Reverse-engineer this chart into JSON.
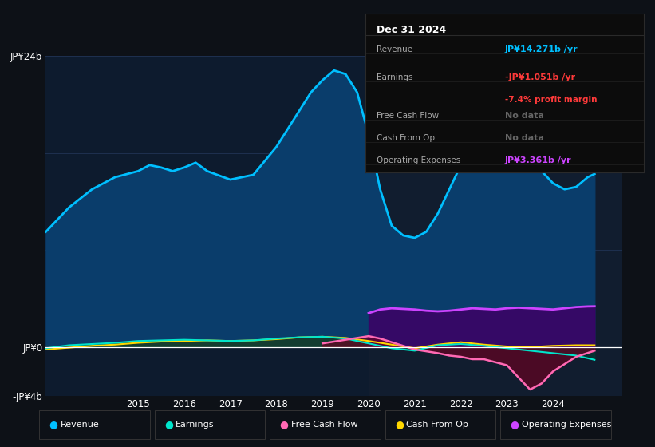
{
  "bg_color": "#0d1117",
  "plot_bg_color": "#0d1b2e",
  "grid_color": "#1e3050",
  "ylim": [
    -4000000000.0,
    24000000000.0
  ],
  "ytick_vals": [
    -4000000000.0,
    0,
    8000000000.0,
    16000000000.0,
    24000000000.0
  ],
  "ytick_labels": [
    "-JP¥4b",
    "JP¥0",
    "",
    "",
    "JP¥24b"
  ],
  "xlim": [
    2013.0,
    2025.5
  ],
  "xticks": [
    2015,
    2016,
    2017,
    2018,
    2019,
    2020,
    2021,
    2022,
    2023,
    2024
  ],
  "legend": [
    {
      "label": "Revenue",
      "color": "#00bfff"
    },
    {
      "label": "Earnings",
      "color": "#00e5cc"
    },
    {
      "label": "Free Cash Flow",
      "color": "#ff69b4"
    },
    {
      "label": "Cash From Op",
      "color": "#ffd700"
    },
    {
      "label": "Operating Expenses",
      "color": "#cc44ff"
    }
  ],
  "revenue": {
    "x": [
      2013.0,
      2013.5,
      2014.0,
      2014.5,
      2015.0,
      2015.25,
      2015.5,
      2015.75,
      2016.0,
      2016.25,
      2016.5,
      2017.0,
      2017.5,
      2018.0,
      2018.5,
      2018.75,
      2019.0,
      2019.25,
      2019.5,
      2019.75,
      2020.0,
      2020.25,
      2020.5,
      2020.75,
      2021.0,
      2021.25,
      2021.5,
      2021.75,
      2022.0,
      2022.25,
      2022.5,
      2022.75,
      2023.0,
      2023.25,
      2023.5,
      2023.75,
      2024.0,
      2024.25,
      2024.5,
      2024.75,
      2024.9
    ],
    "y": [
      9500000000.0,
      11500000000.0,
      13000000000.0,
      14000000000.0,
      14500000000.0,
      15000000000.0,
      14800000000.0,
      14500000000.0,
      14800000000.0,
      15200000000.0,
      14500000000.0,
      13800000000.0,
      14200000000.0,
      16500000000.0,
      19500000000.0,
      21000000000.0,
      22000000000.0,
      22800000000.0,
      22500000000.0,
      21000000000.0,
      17500000000.0,
      13000000000.0,
      10000000000.0,
      9200000000.0,
      9000000000.0,
      9500000000.0,
      11000000000.0,
      13000000000.0,
      15000000000.0,
      16000000000.0,
      15500000000.0,
      15800000000.0,
      16000000000.0,
      15800000000.0,
      15500000000.0,
      14500000000.0,
      13500000000.0,
      13000000000.0,
      13200000000.0,
      14000000000.0,
      14271000000.0
    ],
    "color": "#00bfff",
    "fill_color": "#0a3d6b",
    "linewidth": 2.0
  },
  "earnings": {
    "x": [
      2013.0,
      2013.5,
      2014.0,
      2014.5,
      2015.0,
      2015.5,
      2016.0,
      2016.5,
      2017.0,
      2017.5,
      2018.0,
      2018.5,
      2019.0,
      2019.5,
      2019.75,
      2020.0,
      2020.25,
      2020.5,
      2021.0,
      2021.5,
      2022.0,
      2022.5,
      2023.0,
      2023.5,
      2024.0,
      2024.5,
      2024.9
    ],
    "y": [
      -100000000.0,
      150000000.0,
      250000000.0,
      350000000.0,
      500000000.0,
      550000000.0,
      600000000.0,
      550000000.0,
      500000000.0,
      550000000.0,
      700000000.0,
      800000000.0,
      850000000.0,
      700000000.0,
      500000000.0,
      300000000.0,
      100000000.0,
      -100000000.0,
      -300000000.0,
      150000000.0,
      250000000.0,
      100000000.0,
      -100000000.0,
      -300000000.0,
      -500000000.0,
      -700000000.0,
      -1051000000.0
    ],
    "color": "#00e5cc",
    "fill_color": "#003d35",
    "linewidth": 1.5
  },
  "free_cash_flow": {
    "x": [
      2019.0,
      2019.5,
      2020.0,
      2020.25,
      2020.5,
      2020.75,
      2021.0,
      2021.5,
      2021.75,
      2022.0,
      2022.25,
      2022.5,
      2023.0,
      2023.25,
      2023.5,
      2023.75,
      2024.0,
      2024.5,
      2024.9
    ],
    "y": [
      300000000.0,
      600000000.0,
      900000000.0,
      700000000.0,
      400000000.0,
      100000000.0,
      -200000000.0,
      -500000000.0,
      -700000000.0,
      -800000000.0,
      -1000000000.0,
      -1000000000.0,
      -1500000000.0,
      -2500000000.0,
      -3500000000.0,
      -3000000000.0,
      -2000000000.0,
      -800000000.0,
      -300000000.0
    ],
    "color": "#ff69b4",
    "fill_color": "#6b0020",
    "linewidth": 1.8
  },
  "cash_from_op": {
    "x": [
      2013.0,
      2013.5,
      2014.0,
      2014.5,
      2015.0,
      2015.5,
      2016.0,
      2016.5,
      2017.0,
      2017.5,
      2018.0,
      2018.5,
      2019.0,
      2019.5,
      2020.0,
      2020.5,
      2021.0,
      2021.5,
      2022.0,
      2022.5,
      2023.0,
      2023.5,
      2024.0,
      2024.5,
      2024.9
    ],
    "y": [
      -200000000.0,
      -50000000.0,
      100000000.0,
      200000000.0,
      350000000.0,
      450000000.0,
      500000000.0,
      550000000.0,
      500000000.0,
      550000000.0,
      650000000.0,
      800000000.0,
      850000000.0,
      750000000.0,
      500000000.0,
      200000000.0,
      -100000000.0,
      200000000.0,
      400000000.0,
      200000000.0,
      50000000.0,
      0.0,
      100000000.0,
      150000000.0,
      150000000.0
    ],
    "color": "#ffd700",
    "fill_color": "#4d3d00",
    "linewidth": 1.5
  },
  "operating_expenses": {
    "x": [
      2020.0,
      2020.25,
      2020.5,
      2020.75,
      2021.0,
      2021.25,
      2021.5,
      2021.75,
      2022.0,
      2022.25,
      2022.5,
      2022.75,
      2023.0,
      2023.25,
      2023.5,
      2023.75,
      2024.0,
      2024.25,
      2024.5,
      2024.75,
      2024.9
    ],
    "y": [
      2800000000.0,
      3100000000.0,
      3200000000.0,
      3150000000.0,
      3100000000.0,
      3000000000.0,
      2950000000.0,
      3000000000.0,
      3100000000.0,
      3200000000.0,
      3150000000.0,
      3100000000.0,
      3200000000.0,
      3250000000.0,
      3200000000.0,
      3150000000.0,
      3100000000.0,
      3200000000.0,
      3300000000.0,
      3350000000.0,
      3361000000.0
    ],
    "color": "#cc44ff",
    "fill_color": "#3d0066",
    "linewidth": 2.0
  },
  "shade_start": 2020.0
}
